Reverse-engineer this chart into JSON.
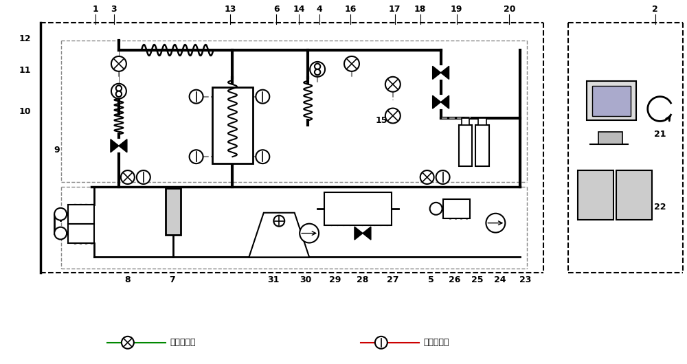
{
  "title": "",
  "bg_color": "#ffffff",
  "line_color": "#000000",
  "fig_width": 10.0,
  "fig_height": 5.3,
  "legend_text_pressure": "压力传感器",
  "legend_text_temp": "温度传感器"
}
